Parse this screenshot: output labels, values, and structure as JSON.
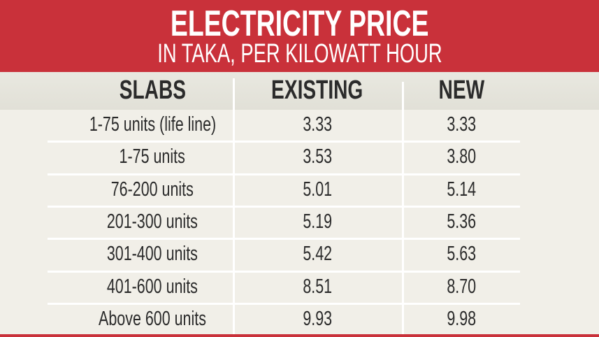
{
  "header": {
    "title": "ELECTRICITY PRICE",
    "subtitle": "IN TAKA, PER KILOWATT HOUR"
  },
  "colors": {
    "header_red": "#c9313a",
    "background": "#f1efe8",
    "header_row": "#e4e3da"
  },
  "chart_data": {
    "type": "table",
    "title": "ELECTRICITY PRICE",
    "subtitle": "IN TAKA, PER KILOWATT HOUR",
    "columns": [
      "SLABS",
      "EXISTING",
      "NEW"
    ],
    "rows": [
      [
        "1-75 units (life line)",
        "3.33",
        "3.33"
      ],
      [
        "1-75 units",
        "3.53",
        "3.80"
      ],
      [
        "76-200 units",
        "5.01",
        "5.14"
      ],
      [
        "201-300 units",
        "5.19",
        "5.36"
      ],
      [
        "301-400 units",
        "5.42",
        "5.63"
      ],
      [
        "401-600 units",
        "8.51",
        "8.70"
      ],
      [
        "Above 600 units",
        "9.93",
        "9.98"
      ]
    ]
  }
}
